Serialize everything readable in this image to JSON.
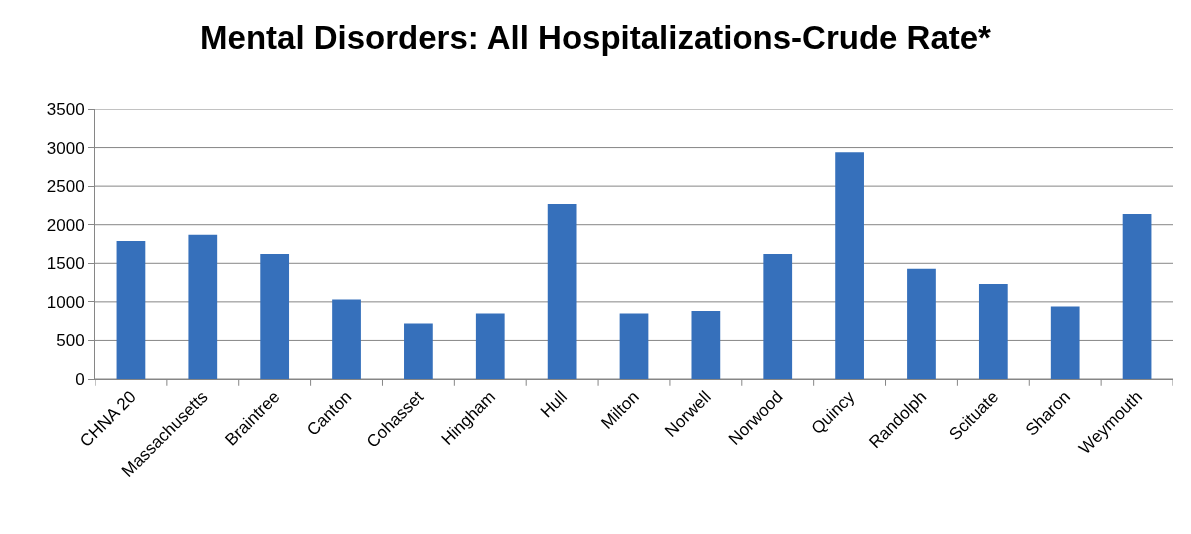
{
  "chart_data": {
    "type": "bar",
    "title": "Mental Disorders: All Hospitalizations-Crude Rate*",
    "categories": [
      "CHNA 20",
      "Massachusetts",
      "Braintree",
      "Canton",
      "Cohasset",
      "Hingham",
      "Hull",
      "Milton",
      "Norwell",
      "Norwood",
      "Quincy",
      "Randolph",
      "Scituate",
      "Sharon",
      "Weymouth"
    ],
    "values": [
      1790,
      1870,
      1620,
      1030,
      720,
      850,
      2270,
      850,
      880,
      1620,
      2940,
      1430,
      1230,
      940,
      2140
    ],
    "color": "#3670bb",
    "ylim": [
      0,
      3500
    ],
    "yticks": [
      0,
      500,
      1000,
      1500,
      2000,
      2500,
      3000,
      3500
    ],
    "grid": "y",
    "legend": false
  }
}
